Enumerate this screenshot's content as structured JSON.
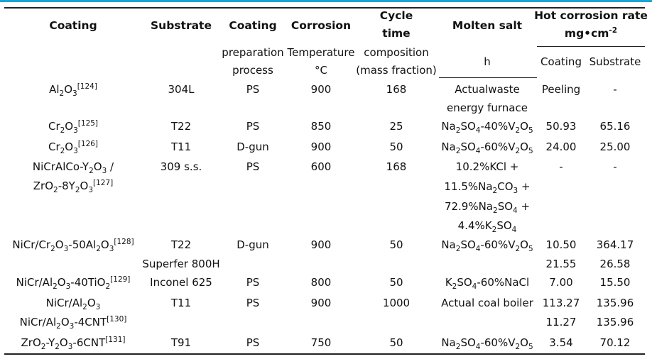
{
  "table": {
    "headers": {
      "coating": "Coating",
      "substrate": "Substrate",
      "coating_prep_1": "Coating",
      "coating_prep_2": "preparation",
      "coating_prep_3": "process",
      "corrosion_1": "Corrosion",
      "corrosion_2": "Temperature",
      "corrosion_3": "°C",
      "cycle_1": "Cycle",
      "cycle_2": "time",
      "cycle_3": "composition",
      "cycle_4": "(mass fraction)",
      "molten_1": "Molten salt",
      "molten_2": "h",
      "hot_1": "Hot corrosion rate",
      "hot_2": "mg•cm",
      "hot_2_sup": "-2",
      "hot_coating": "Coating",
      "hot_substrate": "Substrate"
    },
    "rows": [
      {
        "coating": "Al<sub>2</sub>O<sub>3</sub><sup>[124]</sup>",
        "substrate": "304L",
        "process": "PS",
        "temp": "900",
        "time": "168",
        "salt": "Actualwaste",
        "salt2": "energy furnace",
        "rate_coating": "Peeling",
        "rate_substrate": "-"
      },
      {
        "coating": "Cr<sub>2</sub>O<sub>3</sub><sup>[125]</sup>",
        "substrate": "T22",
        "process": "PS",
        "temp": "850",
        "time": "25",
        "salt": "Na<sub>2</sub>SO<sub>4</sub>-40%V<sub>2</sub>O<sub>5</sub>",
        "rate_coating": "50.93",
        "rate_substrate": "65.16"
      },
      {
        "coating": "Cr<sub>2</sub>O<sub>3</sub><sup>[126]</sup>",
        "substrate": "T11",
        "process": "D-gun",
        "temp": "900",
        "time": "50",
        "salt": "Na<sub>2</sub>SO<sub>4</sub>-60%V<sub>2</sub>O<sub>5</sub>",
        "rate_coating": "24.00",
        "rate_substrate": "25.00"
      },
      {
        "coating": "NiCrAlCo-Y<sub>2</sub>O<sub>3</sub> /",
        "coating2": "ZrO<sub>2</sub>-8Y<sub>2</sub>O<sub>3</sub><sup>[127]</sup>",
        "substrate": "309 s.s.",
        "process": "PS",
        "temp": "600",
        "time": "168",
        "salt": "10.2%KCl +",
        "salt2": "11.5%Na<sub>2</sub>CO<sub>3</sub> +",
        "salt3": "72.9%Na<sub>2</sub>SO<sub>4</sub> +",
        "salt4": "4.4%K<sub>2</sub>SO<sub>4</sub>",
        "rate_coating": "-",
        "rate_substrate": "-"
      },
      {
        "coating": "NiCr/Cr<sub>2</sub>O<sub>3</sub>-50Al<sub>2</sub>O<sub>3</sub><sup>[128]</sup>",
        "substrate": "T22",
        "substrate2": "Superfer 800H",
        "process": "D-gun",
        "temp": "900",
        "time": "50",
        "salt": "Na<sub>2</sub>SO<sub>4</sub>-60%V<sub>2</sub>O<sub>5</sub>",
        "rate_coating": "10.50",
        "rate_substrate": "364.17",
        "rate_coating2": "21.55",
        "rate_substrate2": "26.58"
      },
      {
        "coating": "NiCr/Al<sub>2</sub>O<sub>3</sub>-40TiO<sub>2</sub><sup>[129]</sup>",
        "substrate": "Inconel 625",
        "process": "PS",
        "temp": "800",
        "time": "50",
        "salt": "K<sub>2</sub>SO<sub>4</sub>-60%NaCl",
        "rate_coating": "7.00",
        "rate_substrate": "15.50"
      },
      {
        "coating": "NiCr/Al<sub>2</sub>O<sub>3</sub>",
        "coating2": "NiCr/Al<sub>2</sub>O<sub>3</sub>-4CNT<sup>[130]</sup>",
        "substrate": "T11",
        "process": "PS",
        "temp": "900",
        "time": "1000",
        "salt": "Actual coal boiler",
        "rate_coating": "113.27",
        "rate_substrate": "135.96",
        "rate_coating2": "11.27",
        "rate_substrate2": "135.96"
      },
      {
        "coating": "ZrO<sub>2</sub>-Y<sub>2</sub>O<sub>3</sub>-6CNT<sup>[131]</sup>",
        "substrate": "T91",
        "process": "PS",
        "temp": "750",
        "time": "50",
        "salt": "Na<sub>2</sub>SO<sub>4</sub>-60%V<sub>2</sub>O<sub>5</sub>",
        "rate_coating": "3.54",
        "rate_substrate": "70.12"
      }
    ]
  }
}
